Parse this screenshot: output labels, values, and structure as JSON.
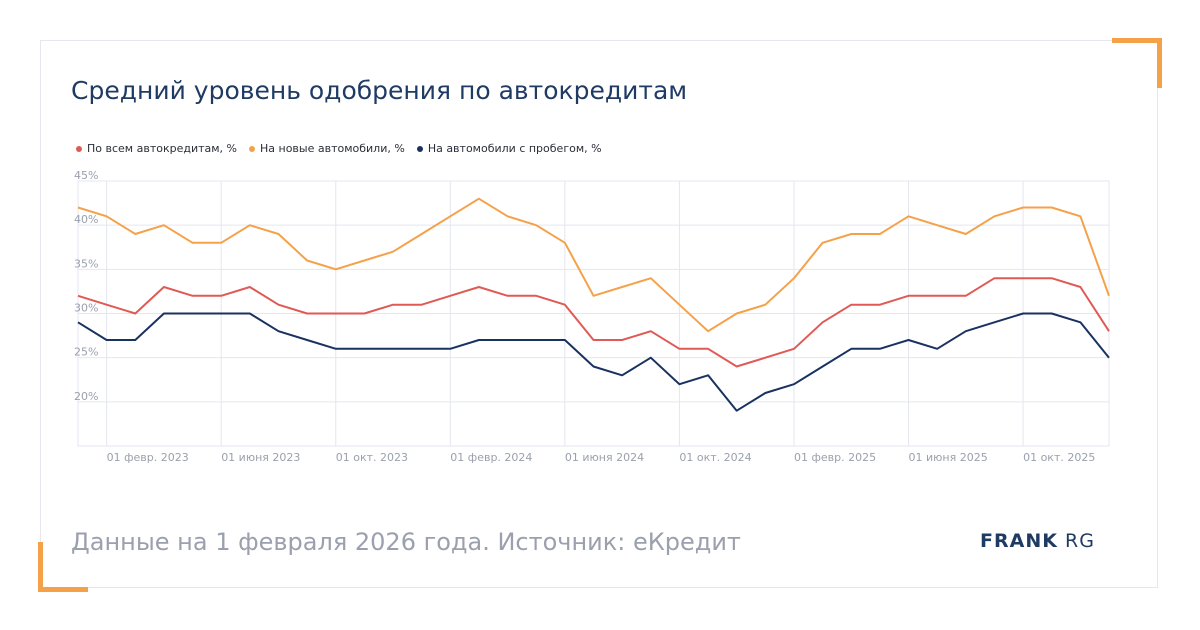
{
  "header": {
    "title": "Средний уровень одобрения по автокредитам"
  },
  "footer": {
    "source_text": "Данные на 1 февраля 2026 года. Источник: еКредит"
  },
  "logo": {
    "bold": "FRANK",
    "light": "RG"
  },
  "colors": {
    "accent": "#f5a14a",
    "title": "#1f3b64",
    "all": "#e05a55",
    "new": "#f5a14a",
    "used": "#1a3260"
  },
  "chart_data": {
    "type": "line",
    "title": "Средний уровень одобрения по автокредитам",
    "x_tick_labels": [
      "01 февр. 2023",
      "01 июня 2023",
      "01 окт. 2023",
      "01 февр. 2024",
      "01 июня 2024",
      "01 окт. 2024",
      "01 февр. 2025",
      "01 июня 2025",
      "01 окт. 2025"
    ],
    "y_tick_labels": [
      "45%",
      "40%",
      "35%",
      "30%",
      "25%",
      "20%"
    ],
    "ylim": [
      15,
      45
    ],
    "y_ticks": [
      45,
      40,
      35,
      30,
      25,
      20
    ],
    "grid": true,
    "legend_position": "top-left",
    "x": [
      "2023-01",
      "2023-02",
      "2023-03",
      "2023-04",
      "2023-05",
      "2023-06",
      "2023-07",
      "2023-08",
      "2023-09",
      "2023-10",
      "2023-11",
      "2023-12",
      "2024-01",
      "2024-02",
      "2024-03",
      "2024-04",
      "2024-05",
      "2024-06",
      "2024-07",
      "2024-08",
      "2024-09",
      "2024-10",
      "2024-11",
      "2024-12",
      "2025-01",
      "2025-02",
      "2025-03",
      "2025-04",
      "2025-05",
      "2025-06",
      "2025-07",
      "2025-08",
      "2025-09",
      "2025-10",
      "2025-11",
      "2025-12",
      "2026-01"
    ],
    "series": [
      {
        "name": "По всем автокредитам, %",
        "color": "#e05a55",
        "values": [
          32,
          31,
          30,
          33,
          32,
          32,
          33,
          31,
          30,
          30,
          30,
          31,
          31,
          32,
          33,
          32,
          32,
          31,
          27,
          27,
          28,
          26,
          26,
          24,
          25,
          26,
          29,
          31,
          31,
          32,
          32,
          32,
          34,
          34,
          34,
          33,
          28
        ]
      },
      {
        "name": "На новые автомобили, %",
        "color": "#f5a14a",
        "values": [
          42,
          41,
          39,
          40,
          38,
          38,
          40,
          39,
          36,
          35,
          36,
          37,
          39,
          41,
          43,
          41,
          40,
          38,
          32,
          33,
          34,
          31,
          28,
          30,
          31,
          34,
          38,
          39,
          39,
          41,
          40,
          39,
          41,
          42,
          42,
          41,
          32
        ]
      },
      {
        "name": "На автомобили с пробегом, %",
        "color": "#1a3260",
        "values": [
          29,
          27,
          27,
          30,
          30,
          30,
          30,
          28,
          27,
          26,
          26,
          26,
          26,
          26,
          27,
          27,
          27,
          27,
          24,
          23,
          25,
          22,
          23,
          19,
          21,
          22,
          24,
          26,
          26,
          27,
          26,
          28,
          29,
          30,
          30,
          29,
          25
        ]
      }
    ]
  }
}
